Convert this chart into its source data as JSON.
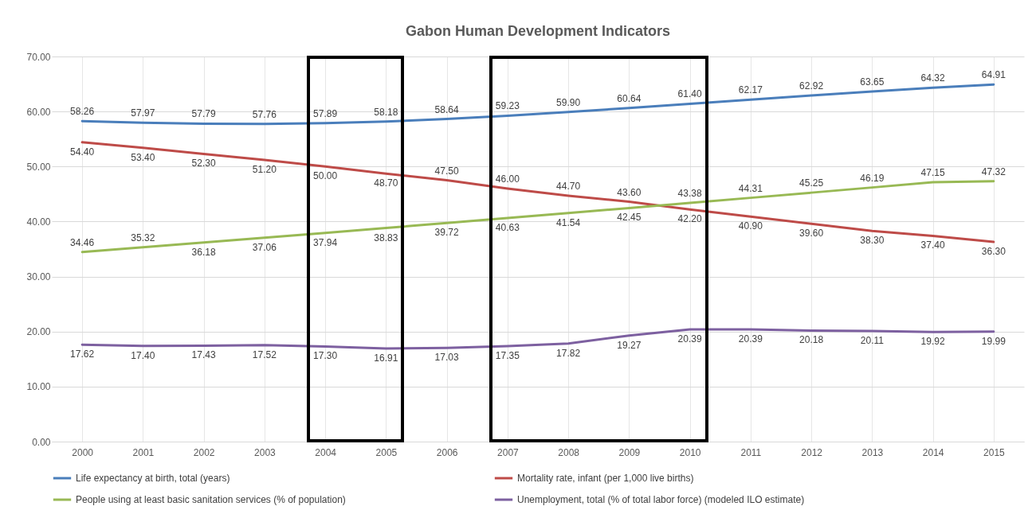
{
  "chart_data": {
    "type": "line",
    "title": "Gabon Human Development Indicators",
    "categories": [
      "2000",
      "2001",
      "2002",
      "2003",
      "2004",
      "2005",
      "2006",
      "2007",
      "2008",
      "2009",
      "2010",
      "2011",
      "2012",
      "2013",
      "2014",
      "2015"
    ],
    "series": [
      {
        "name": "Life expectancy at birth, total (years)",
        "color": "#4a7ebb",
        "values": [
          58.26,
          57.97,
          57.79,
          57.76,
          57.89,
          58.18,
          58.64,
          59.23,
          59.9,
          60.64,
          61.4,
          62.17,
          62.92,
          63.65,
          64.32,
          64.91
        ],
        "value_labels": [
          "58.26",
          "57.97",
          "57.79",
          "57.76",
          "57.89",
          "58.18",
          "58.64",
          "59.23",
          "59.90",
          "60.64",
          "61.40",
          "62.17",
          "62.92",
          "63.65",
          "64.32",
          "64.91"
        ]
      },
      {
        "name": "Mortality rate, infant (per 1,000 live births)",
        "color": "#be4b48",
        "values": [
          54.4,
          53.4,
          52.3,
          51.2,
          50.0,
          48.7,
          47.5,
          46.0,
          44.7,
          43.6,
          42.2,
          40.9,
          39.6,
          38.3,
          37.4,
          36.3
        ],
        "value_labels": [
          "54.40",
          "53.40",
          "52.30",
          "51.20",
          "50.00",
          "48.70",
          "47.50",
          "46.00",
          "44.70",
          "43.60",
          "42.20",
          "40.90",
          "39.60",
          "38.30",
          "37.40",
          "36.30"
        ]
      },
      {
        "name": "People using at least basic sanitation services (% of population)",
        "color": "#98b954",
        "values": [
          34.46,
          35.32,
          36.18,
          37.06,
          37.94,
          38.83,
          39.72,
          40.63,
          41.54,
          42.45,
          43.38,
          44.31,
          45.25,
          46.19,
          47.15,
          47.32
        ],
        "value_labels": [
          "34.46",
          "35.32",
          "36.18",
          "37.06",
          "37.94",
          "38.83",
          "39.72",
          "40.63",
          "41.54",
          "42.45",
          "43.38",
          "44.31",
          "45.25",
          "46.19",
          "47.15",
          "47.32"
        ]
      },
      {
        "name": "Unemployment, total (% of total labor force) (modeled ILO estimate)",
        "color": "#7d60a0",
        "values": [
          17.62,
          17.4,
          17.43,
          17.52,
          17.3,
          16.91,
          17.03,
          17.35,
          17.82,
          19.27,
          20.39,
          20.39,
          20.18,
          20.11,
          19.92,
          19.99
        ],
        "value_labels": [
          "17.62",
          "17.40",
          "17.43",
          "17.52",
          "17.30",
          "16.91",
          "17.03",
          "17.35",
          "17.82",
          "19.27",
          "20.39",
          "20.39",
          "20.18",
          "20.11",
          "19.92",
          "19.99"
        ]
      }
    ],
    "ylim": [
      0,
      70
    ],
    "yticks": [
      {
        "value": 0,
        "label": "0.00"
      },
      {
        "value": 10,
        "label": "10.00"
      },
      {
        "value": 20,
        "label": "20.00"
      },
      {
        "value": 30,
        "label": "30.00"
      },
      {
        "value": 40,
        "label": "40.00"
      },
      {
        "value": 50,
        "label": "50.00"
      },
      {
        "value": 60,
        "label": "60.00"
      },
      {
        "value": 70,
        "label": "70.00"
      }
    ],
    "grid": true,
    "legend": "bottom",
    "marker": "none",
    "line_style": "solid"
  }
}
